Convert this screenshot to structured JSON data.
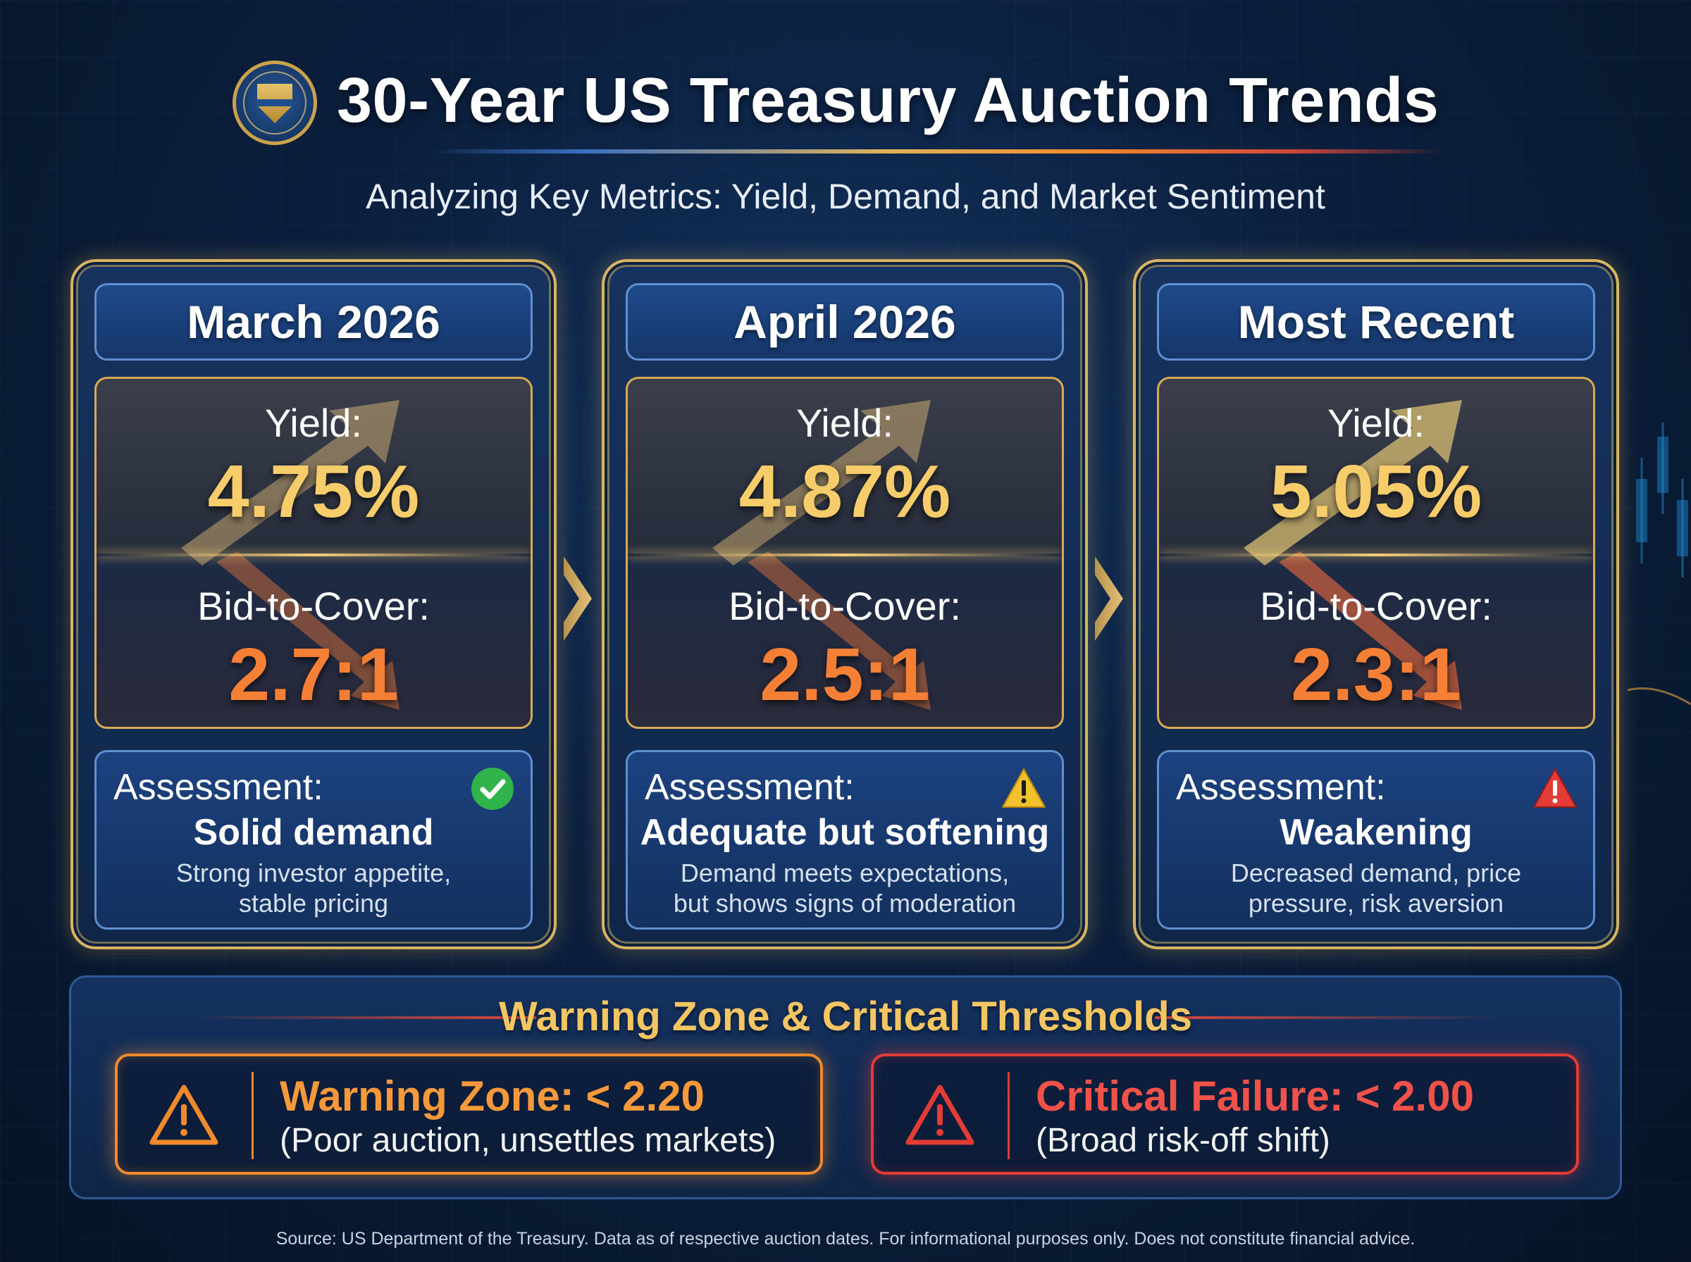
{
  "header": {
    "title": "30-Year US Treasury Auction Trends",
    "subtitle": "Analyzing Key Metrics: Yield, Demand, and Market Sentiment",
    "seal_icon": "treasury-seal-icon"
  },
  "cards": [
    {
      "period": "March 2026",
      "yield_label": "Yield:",
      "yield": "4.75%",
      "btc_label": "Bid-to-Cover:",
      "bid_to_cover": "2.7:1",
      "assessment_label": "Assessment:",
      "verdict": "Solid demand",
      "desc1": "Strong investor appetite,",
      "desc2": "stable pricing",
      "status_icon": "check-circle-icon",
      "status_color": "#2fb34a"
    },
    {
      "period": "April 2026",
      "yield_label": "Yield:",
      "yield": "4.87%",
      "btc_label": "Bid-to-Cover:",
      "bid_to_cover": "2.5:1",
      "assessment_label": "Assessment:",
      "verdict": "Adequate but softening",
      "desc1": "Demand meets expectations,",
      "desc2": "but shows signs of moderation",
      "status_icon": "warning-triangle-icon",
      "status_color": "#f2c12e"
    },
    {
      "period": "Most Recent",
      "yield_label": "Yield:",
      "yield": "5.05%",
      "btc_label": "Bid-to-Cover:",
      "bid_to_cover": "2.3:1",
      "assessment_label": "Assessment:",
      "verdict": "Weakening",
      "desc1": "Decreased demand, price",
      "desc2": "pressure, risk aversion",
      "status_icon": "alert-triangle-icon",
      "status_color": "#e33b36"
    }
  ],
  "thresholds": {
    "title": "Warning Zone & Critical Thresholds",
    "warning": {
      "heading": "Warning Zone: < 2.20",
      "desc": "(Poor auction, unsettles markets)",
      "color": "#f08a2c"
    },
    "critical": {
      "heading": "Critical Failure: < 2.00",
      "desc": "(Broad risk-off shift)",
      "color": "#e33b36"
    }
  },
  "footer": "Source: US Department of the Treasury. Data as of respective auction dates. For informational purposes only. Does not constitute financial advice."
}
